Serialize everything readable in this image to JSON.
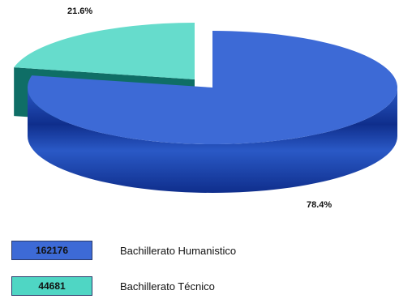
{
  "chart_data": {
    "type": "pie",
    "title": "",
    "categories": [
      "Bachillerato Humanístico",
      "Bachillerato Técnico"
    ],
    "values": [
      162176,
      44681
    ],
    "percent_labels": [
      "78.4%",
      "21.6%"
    ],
    "colors": {
      "Bachillerato Humanístico": {
        "top": "#3d6ad6",
        "side_dark": "#0f2e8c",
        "side_light": "#2a59c6"
      },
      "Bachillerato Técnico": {
        "top": "#66dccc",
        "side_dark": "#0f6e66",
        "side_light": "#1a9a8c"
      }
    },
    "exploded_slice": "Bachillerato Técnico",
    "three_d": true
  },
  "legend": {
    "items": [
      {
        "value_label": "162176",
        "label": "Bachillerato Humanistico",
        "color": "#3d6ad6"
      },
      {
        "value_label": "44681",
        "label": "Bachillerato Técnico",
        "color": "#4fd6c4"
      }
    ]
  }
}
